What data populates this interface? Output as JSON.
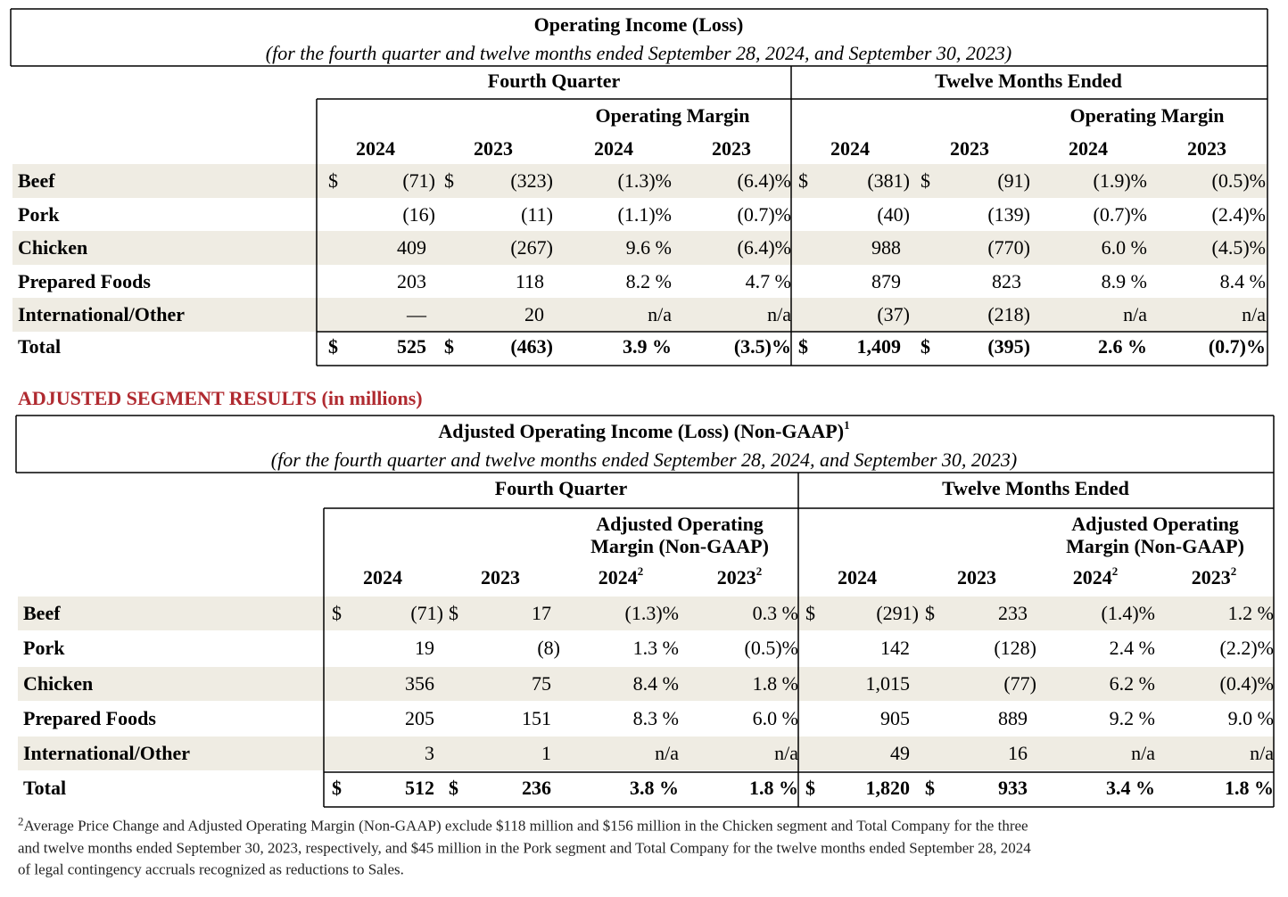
{
  "operating_income": {
    "title": "Operating Income (Loss)",
    "subtitle": "(for the fourth quarter and twelve months ended September 28, 2024, and September 30, 2023)",
    "fourth_quarter": "Fourth Quarter",
    "twelve_months": "Twelve Months Ended",
    "margin_header": "Operating Margin",
    "years": [
      "2024",
      "2023",
      "2024",
      "2023",
      "2024",
      "2023",
      "2024",
      "2023"
    ],
    "currency": "$",
    "rows": [
      {
        "label": "Beef",
        "dollar": true,
        "cells": [
          "(71)",
          "(323)",
          "(1.3)%",
          "(6.4)%",
          "(381)",
          "(91)",
          "(1.9)%",
          "(0.5)%"
        ]
      },
      {
        "label": "Pork",
        "cells": [
          "(16)",
          "(11)",
          "(1.1)%",
          "(0.7)%",
          "(40)",
          "(139)",
          "(0.7)%",
          "(2.4)%"
        ]
      },
      {
        "label": "Chicken",
        "cells": [
          "409",
          "(267)",
          "9.6 %",
          "(6.4)%",
          "988",
          "(770)",
          "6.0 %",
          "(4.5)%"
        ]
      },
      {
        "label": "Prepared Foods",
        "cells": [
          "203",
          "118",
          "8.2 %",
          "4.7 %",
          "879",
          "823",
          "8.9 %",
          "8.4 %"
        ]
      },
      {
        "label": "International/Other",
        "cells": [
          "—",
          "20",
          "n/a",
          "n/a",
          "(37)",
          "(218)",
          "n/a",
          "n/a"
        ]
      },
      {
        "label": "Total",
        "dollar": true,
        "cells": [
          "525",
          "(463)",
          "3.9 %",
          "(3.5)%",
          "1,409",
          "(395)",
          "2.6 %",
          "(0.7)%"
        ]
      }
    ]
  },
  "section_heading": "ADJUSTED SEGMENT RESULTS (in millions)",
  "adjusted": {
    "title": "Adjusted Operating Income (Loss) (Non-GAAP)",
    "title_note": "1",
    "subtitle": "(for the fourth quarter and twelve months ended September 28, 2024, and September 30, 2023)",
    "fourth_quarter": "Fourth Quarter",
    "twelve_months": "Twelve Months Ended",
    "margin_header": "Adjusted Operating Margin (Non-GAAP)",
    "margin_note": "2",
    "years": [
      "2024",
      "2023",
      "2024",
      "2023",
      "2024",
      "2023",
      "2024",
      "2023"
    ],
    "currency": "$",
    "rows": [
      {
        "label": "Beef",
        "dollar": true,
        "cells": [
          "(71)",
          "17",
          "(1.3)%",
          "0.3 %",
          "(291)",
          "233",
          "(1.4)%",
          "1.2 %"
        ]
      },
      {
        "label": "Pork",
        "cells": [
          "19",
          "(8)",
          "1.3 %",
          "(0.5)%",
          "142",
          "(128)",
          "2.4 %",
          "(2.2)%"
        ]
      },
      {
        "label": "Chicken",
        "cells": [
          "356",
          "75",
          "8.4 %",
          "1.8 %",
          "1,015",
          "(77)",
          "6.2 %",
          "(0.4)%"
        ]
      },
      {
        "label": "Prepared Foods",
        "cells": [
          "205",
          "151",
          "8.3 %",
          "6.0 %",
          "905",
          "889",
          "9.2 %",
          "9.0 %"
        ]
      },
      {
        "label": "International/Other",
        "cells": [
          "3",
          "1",
          "n/a",
          "n/a",
          "49",
          "16",
          "n/a",
          "n/a"
        ]
      },
      {
        "label": "Total",
        "dollar": true,
        "cells": [
          "512",
          "236",
          "3.8 %",
          "1.8 %",
          "1,820",
          "933",
          "3.4 %",
          "1.8 %"
        ]
      }
    ]
  },
  "footnote": {
    "marker": "2",
    "lines": [
      "Average Price Change and Adjusted Operating Margin (Non-GAAP) exclude $118 million and $156 million in the Chicken segment and Total Company for the three",
      "and twelve months ended September 30, 2023, respectively, and $45 million in the Pork segment and Total Company for the twelve months ended September 28, 2024",
      "of legal contingency accruals recognized as reductions to Sales."
    ]
  }
}
